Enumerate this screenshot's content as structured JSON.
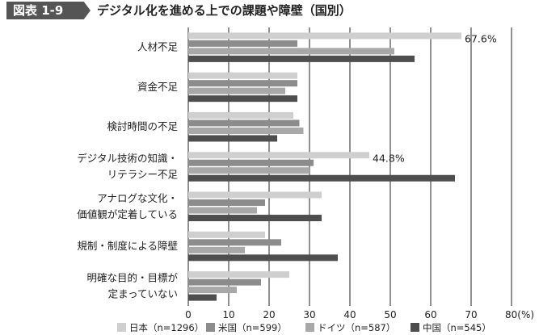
{
  "figure": {
    "label": "図表 1-9",
    "title": "デジタル化を進める上での課題や障壁（国別）"
  },
  "chart_data": {
    "type": "bar",
    "orientation": "horizontal",
    "title": "デジタル化を進める上での課題や障壁（国別）",
    "xlim": [
      0,
      80
    ],
    "xticks": [
      0,
      10,
      20,
      30,
      40,
      50,
      60,
      70,
      80
    ],
    "xunit": "(%)",
    "grid": true,
    "legend_position": "bottom",
    "categories": [
      [
        "人材不足"
      ],
      [
        "資金不足"
      ],
      [
        "検討時間の不足"
      ],
      [
        "デジタル技術の知識・",
        "リテラシー不足"
      ],
      [
        "アナログな文化・",
        "価値観が定着している"
      ],
      [
        "規制・制度による障壁"
      ],
      [
        "明確な目的・目標が",
        "定まっていない"
      ]
    ],
    "series": [
      {
        "name": "日本（n=1296）",
        "color": "#cfcfcf",
        "values": [
          67.6,
          27,
          26,
          44.8,
          33,
          19,
          25
        ]
      },
      {
        "name": "米国（n=599）",
        "color": "#8c8c8c",
        "values": [
          27,
          27,
          27.5,
          31,
          19,
          23,
          18
        ]
      },
      {
        "name": "ドイツ（n=587）",
        "color": "#a8a8a8",
        "values": [
          51,
          24,
          28.5,
          30,
          17,
          14,
          12
        ]
      },
      {
        "name": "中国（n=545）",
        "color": "#4e4e4e",
        "values": [
          56,
          27,
          22,
          66,
          33,
          37,
          7
        ]
      }
    ],
    "annotations": [
      {
        "category_index": 0,
        "series_index": 0,
        "text": "67.6%"
      },
      {
        "category_index": 3,
        "series_index": 0,
        "text": "44.8%"
      }
    ]
  }
}
